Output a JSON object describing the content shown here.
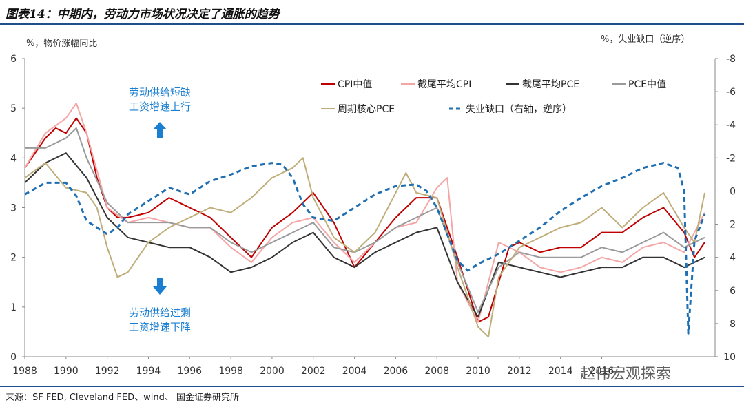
{
  "title": "图表14：中期内，劳动力市场状况决定了通胀的趋势",
  "left_axis_unit": "%，物价涨幅同比",
  "right_axis_unit": "%，失业缺口（逆序）",
  "annotation_up": [
    "劳动供给短缺",
    "工资增速上行"
  ],
  "annotation_down": [
    "劳动供给过剩",
    "工资增速下降"
  ],
  "source": "来源：SF FED, Cleveland FED、wind、 国金证券研究所",
  "watermark": "赵伟宏观探索",
  "colors": {
    "cpi_median": "#c00000",
    "trimmed_cpi": "#f4a6a6",
    "trimmed_pce": "#333333",
    "pce_median": "#9a9a9a",
    "cyclical_core_pce": "#bfae7a",
    "unemployment_gap": "#1f6fb2",
    "annotation": "#1a7fd1"
  },
  "chart_data": {
    "type": "line",
    "x_ticks": [
      "1988",
      "1990",
      "1992",
      "1994",
      "1996",
      "1998",
      "2000",
      "2002",
      "2004",
      "2006",
      "2008",
      "2010",
      "2012",
      "2014",
      "2016"
    ],
    "xlim": [
      1988,
      2021.5
    ],
    "ylim_left": [
      0,
      6
    ],
    "yticks_left": [
      "0",
      "1",
      "2",
      "3",
      "4",
      "5",
      "6"
    ],
    "ylim_right": [
      10,
      -8
    ],
    "yticks_right": [
      "-8",
      "-6",
      "-4",
      "-2",
      "0",
      "2",
      "4",
      "6",
      "8",
      "10"
    ],
    "legend_placement": "top-right",
    "series": [
      {
        "name": "CPI中值",
        "key": "cpi_median",
        "axis": "left",
        "style": "solid",
        "x": [
          1988,
          1989,
          1989.5,
          1990,
          1990.5,
          1991,
          1991.5,
          1992,
          1992.5,
          1993,
          1994,
          1995,
          1996,
          1997,
          1998,
          1999,
          2000,
          2001,
          2002,
          2003,
          2004,
          2005,
          2006,
          2007,
          2008,
          2009,
          2010,
          2010.5,
          2011,
          2011.5,
          2012,
          2013,
          2014,
          2015,
          2016,
          2017,
          2018,
          2019,
          2020,
          2020.5,
          2021
        ],
        "y": [
          3.8,
          4.4,
          4.6,
          4.5,
          4.8,
          4.5,
          3.6,
          3.0,
          2.8,
          2.8,
          2.9,
          3.2,
          3.0,
          2.8,
          2.4,
          2.0,
          2.6,
          2.9,
          3.3,
          2.7,
          1.8,
          2.3,
          2.8,
          3.2,
          3.2,
          2.0,
          0.7,
          0.8,
          1.5,
          2.2,
          2.3,
          2.1,
          2.2,
          2.2,
          2.5,
          2.5,
          2.8,
          3.0,
          2.5,
          2.0,
          2.3
        ]
      },
      {
        "name": "截尾平均CPI",
        "key": "trimmed_cpi",
        "axis": "left",
        "style": "solid",
        "x": [
          1988,
          1989,
          1990,
          1990.5,
          1991,
          1992,
          1993,
          1994,
          1995,
          1996,
          1997,
          1998,
          1999,
          2000,
          2001,
          2002,
          2003,
          2004,
          2005,
          2006,
          2007,
          2008,
          2008.5,
          2009,
          2010,
          2011,
          2012,
          2013,
          2014,
          2015,
          2016,
          2017,
          2018,
          2019,
          2020,
          2021
        ],
        "y": [
          3.8,
          4.5,
          4.8,
          5.1,
          4.5,
          3.0,
          2.7,
          2.8,
          2.7,
          2.6,
          2.6,
          2.2,
          1.9,
          2.4,
          2.7,
          2.8,
          2.3,
          1.9,
          2.3,
          2.6,
          2.7,
          3.4,
          3.6,
          1.5,
          0.7,
          2.3,
          2.1,
          1.8,
          1.7,
          1.8,
          2.0,
          1.9,
          2.2,
          2.3,
          2.1,
          2.9
        ]
      },
      {
        "name": "截尾平均PCE",
        "key": "trimmed_pce",
        "axis": "left",
        "style": "solid",
        "x": [
          1988,
          1989,
          1990,
          1991,
          1992,
          1993,
          1994,
          1995,
          1996,
          1997,
          1998,
          1999,
          2000,
          2001,
          2002,
          2003,
          2004,
          2005,
          2006,
          2007,
          2008,
          2009,
          2010,
          2011,
          2012,
          2013,
          2014,
          2015,
          2016,
          2017,
          2018,
          2019,
          2020,
          2021
        ],
        "y": [
          3.5,
          3.9,
          4.1,
          3.6,
          2.8,
          2.4,
          2.3,
          2.2,
          2.2,
          2.0,
          1.7,
          1.8,
          2.0,
          2.3,
          2.5,
          2.0,
          1.8,
          2.1,
          2.3,
          2.5,
          2.6,
          1.5,
          0.8,
          1.9,
          1.8,
          1.7,
          1.6,
          1.7,
          1.8,
          1.8,
          2.0,
          2.0,
          1.8,
          2.0
        ]
      },
      {
        "name": "PCE中值",
        "key": "pce_median",
        "axis": "left",
        "style": "solid",
        "x": [
          1988,
          1989,
          1990,
          1990.5,
          1991,
          1992,
          1993,
          1994,
          1995,
          1996,
          1997,
          1998,
          1999,
          2000,
          2001,
          2002,
          2003,
          2004,
          2005,
          2006,
          2007,
          2008,
          2009,
          2010,
          2011,
          2012,
          2013,
          2014,
          2015,
          2016,
          2017,
          2018,
          2019,
          2020,
          2021
        ],
        "y": [
          4.2,
          4.2,
          4.4,
          4.6,
          4.0,
          3.1,
          2.7,
          2.7,
          2.7,
          2.6,
          2.6,
          2.3,
          2.1,
          2.3,
          2.5,
          2.7,
          2.2,
          2.1,
          2.3,
          2.6,
          2.8,
          3.0,
          1.9,
          0.9,
          1.8,
          2.1,
          2.0,
          2.0,
          2.0,
          2.2,
          2.1,
          2.3,
          2.5,
          2.2,
          2.4
        ]
      },
      {
        "name": "周期核心PCE",
        "key": "cyclical_core_pce",
        "axis": "left",
        "style": "solid",
        "x": [
          1988,
          1989,
          1990,
          1991,
          1991.5,
          1992,
          1992.5,
          1993,
          1994,
          1995,
          1996,
          1997,
          1998,
          1999,
          2000,
          2001,
          2001.5,
          2002,
          2003,
          2004,
          2005,
          2006,
          2006.5,
          2007,
          2008,
          2009,
          2010,
          2010.5,
          2011,
          2012,
          2013,
          2014,
          2015,
          2016,
          2017,
          2018,
          2019,
          2020,
          2020.5,
          2021
        ],
        "y": [
          3.6,
          3.9,
          3.4,
          3.3,
          3.0,
          2.2,
          1.6,
          1.7,
          2.3,
          2.6,
          2.8,
          3.0,
          2.9,
          3.2,
          3.6,
          3.8,
          4.0,
          3.2,
          2.4,
          2.1,
          2.5,
          3.3,
          3.7,
          3.3,
          3.2,
          1.8,
          0.6,
          0.4,
          1.6,
          2.2,
          2.4,
          2.6,
          2.7,
          3.0,
          2.6,
          3.0,
          3.3,
          2.6,
          2.3,
          3.3
        ]
      },
      {
        "name": "失业缺口（右轴，逆序）",
        "key": "unemployment_gap",
        "axis": "right",
        "style": "dashed",
        "x": [
          1988,
          1989,
          1990,
          1990.5,
          1991,
          1992,
          1992.5,
          1993,
          1994,
          1995,
          1996,
          1997,
          1998,
          1999,
          2000,
          2000.5,
          2001,
          2001.5,
          2002,
          2003,
          2004,
          2005,
          2006,
          2007,
          2007.5,
          2008,
          2009,
          2009.5,
          2010,
          2011,
          2012,
          2013,
          2014,
          2015,
          2016,
          2017,
          2018,
          2019,
          2019.7,
          2020,
          2020.2,
          2020.5,
          2021
        ],
        "y": [
          0.2,
          -0.5,
          -0.5,
          0.3,
          1.8,
          2.6,
          2.2,
          1.4,
          0.6,
          -0.2,
          0.2,
          -0.6,
          -1.0,
          -1.5,
          -1.7,
          -1.6,
          -0.8,
          0.8,
          1.6,
          1.8,
          1.0,
          0.2,
          -0.3,
          -0.4,
          0.0,
          1.0,
          4.2,
          4.8,
          4.4,
          3.8,
          3.0,
          2.2,
          1.2,
          0.4,
          -0.3,
          -0.8,
          -1.4,
          -1.7,
          -1.4,
          0.0,
          8.6,
          3.0,
          1.4
        ]
      }
    ]
  }
}
